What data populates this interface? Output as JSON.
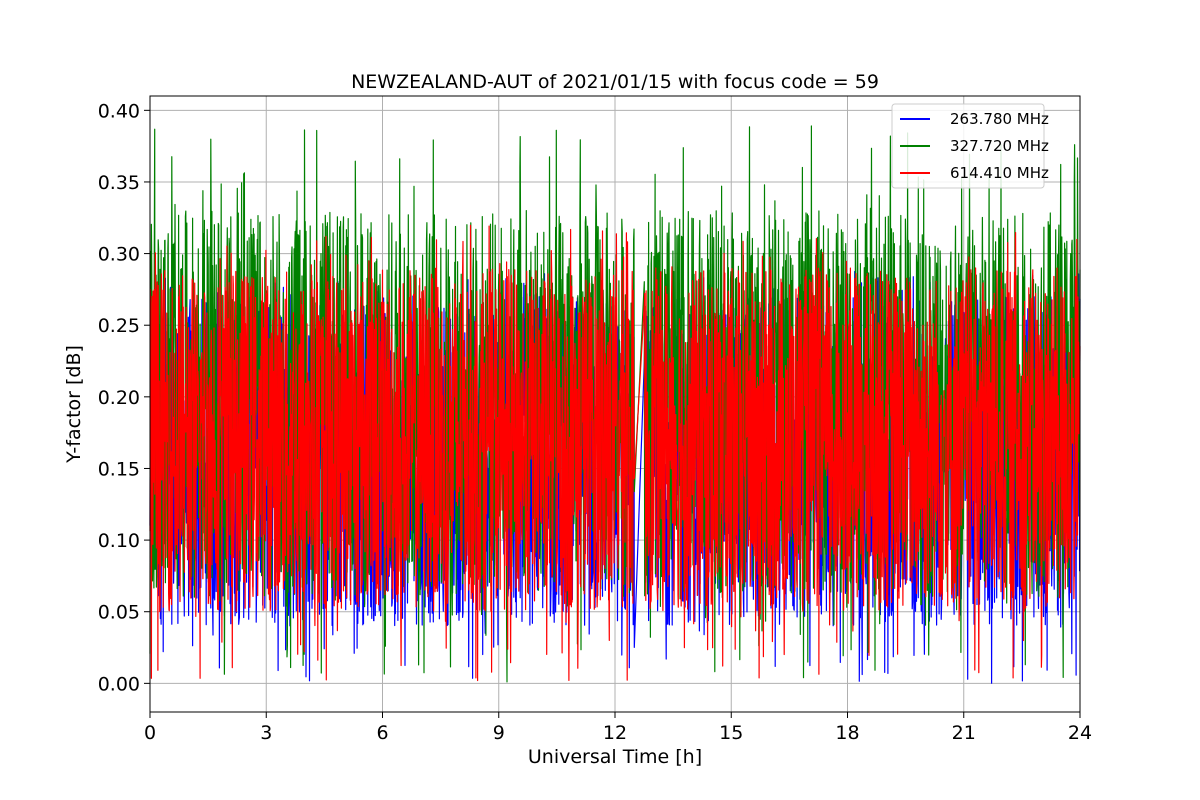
{
  "chart_data": {
    "type": "line",
    "title": "NEWZEALAND-AUT of 2021/01/15 with focus code = 59",
    "xlabel": "Universal Time [h]",
    "ylabel": "Y-factor [dB]",
    "xlim": [
      0,
      24
    ],
    "ylim": [
      -0.02,
      0.41
    ],
    "xticks": [
      0,
      3,
      6,
      9,
      12,
      15,
      18,
      21,
      24
    ],
    "xtick_labels": [
      "0",
      "3",
      "6",
      "9",
      "12",
      "15",
      "18",
      "21",
      "24"
    ],
    "yticks": [
      0.0,
      0.05,
      0.1,
      0.15,
      0.2,
      0.25,
      0.3,
      0.35,
      0.4
    ],
    "ytick_labels": [
      "0.00",
      "0.05",
      "0.10",
      "0.15",
      "0.20",
      "0.25",
      "0.30",
      "0.35",
      "0.40"
    ],
    "grid": true,
    "legend_position": "top-right",
    "data_gap_hours": [
      12.5,
      12.75
    ],
    "series": [
      {
        "name": "263.780 MHz",
        "color": "#0000ff",
        "typical_range": [
          0.04,
          0.27
        ],
        "min": 0.0,
        "max": 0.29,
        "mean": 0.16
      },
      {
        "name": "327.720 MHz",
        "color": "#008000",
        "typical_range": [
          0.06,
          0.33
        ],
        "min": 0.0,
        "max": 0.39,
        "mean": 0.19
      },
      {
        "name": "614.410 MHz",
        "color": "#ff0000",
        "typical_range": [
          0.05,
          0.29
        ],
        "min": 0.0,
        "max": 0.32,
        "mean": 0.17
      }
    ]
  }
}
